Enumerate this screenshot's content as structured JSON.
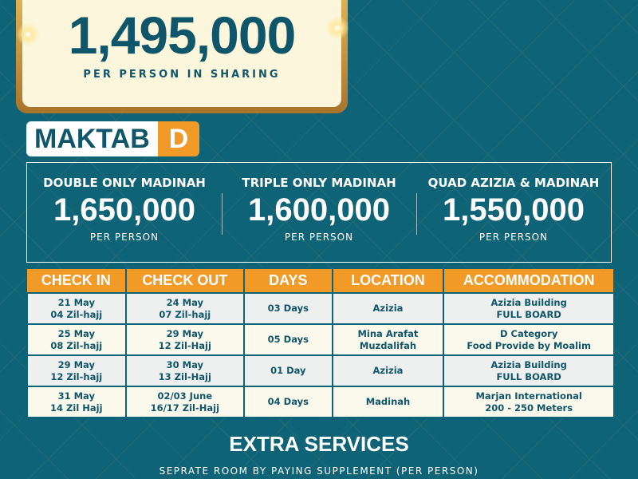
{
  "headline": {
    "price": "1,495,000",
    "subtitle": "PER PERSON IN SHARING"
  },
  "maktab": {
    "label": "MAKTAB",
    "category": "D"
  },
  "prices": [
    {
      "label": "DOUBLE ONLY MADINAH",
      "value": "1,650,000",
      "unit": "PER PERSON"
    },
    {
      "label": "TRIPLE ONLY MADINAH",
      "value": "1,600,000",
      "unit": "PER PERSON"
    },
    {
      "label": "QUAD AZIZIA & MADINAH",
      "value": "1,550,000",
      "unit": "PER PERSON"
    }
  ],
  "table": {
    "headers": [
      "CHECK IN",
      "CHECK OUT",
      "DAYS",
      "LOCATION",
      "ACCOMMODATION"
    ],
    "rows": [
      [
        [
          "21 May",
          "04 Zil-hajj"
        ],
        [
          "24 May",
          "07 Zil-hajj"
        ],
        [
          "03 Days"
        ],
        [
          "Azizia"
        ],
        [
          "Azizia Building",
          "FULL BOARD"
        ]
      ],
      [
        [
          "25 May",
          "08 Zil-hajj"
        ],
        [
          "29 May",
          "12 Zil-Hajj"
        ],
        [
          "05 Days"
        ],
        [
          "Mina Arafat",
          "Muzdalifah"
        ],
        [
          "D Category",
          "Food Provide by Moalim"
        ]
      ],
      [
        [
          "29 May",
          "12 Zil-hajj"
        ],
        [
          "30 May",
          "13 Zil-Hajj"
        ],
        [
          "01 Day"
        ],
        [
          "Azizia"
        ],
        [
          "Azizia Building",
          "FULL BOARD"
        ]
      ],
      [
        [
          "31 May",
          "14 Zil Hajj"
        ],
        [
          "02/03 June",
          "16/17 Zil-Hajj"
        ],
        [
          "04 Days"
        ],
        [
          "Madinah"
        ],
        [
          "Marjan International",
          "200 - 250 Meters"
        ]
      ]
    ]
  },
  "extra": {
    "title": "EXTRA SERVICES",
    "note": "SEPRATE ROOM BY PAYING SUPPLEMENT (PER PERSON)"
  },
  "colors": {
    "background": "#0f6377",
    "accent": "#f19a27",
    "text": "#10566a"
  }
}
